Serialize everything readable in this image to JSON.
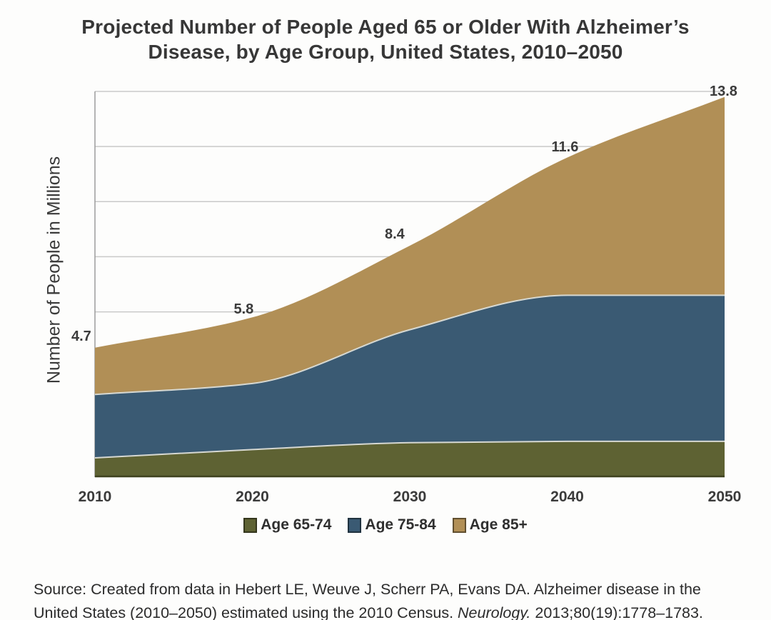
{
  "title": {
    "line1": "Projected Number of People Aged 65 or Older With Alzheimer’s",
    "line2": "Disease, by Age Group, United States, 2010–2050"
  },
  "y_axis_label": "Number of People in Millions",
  "colors": {
    "age_65_74": "#5e6233",
    "age_75_84": "#3a5a73",
    "age_85_plus": "#b18f56",
    "gridline": "#c9c9c9",
    "axis_line": "#9b9b9b",
    "baseline_edge": "#3f431f",
    "layer_edge_highlight": "#d6d8d2",
    "label_text": "#3b3b3b"
  },
  "chart_data": {
    "type": "area",
    "stacked": true,
    "title": "Projected Number of People Aged 65 or Older With Alzheimer's Disease, by Age Group, United States, 2010-2050",
    "categories": [
      2010,
      2020,
      2030,
      2040,
      2050
    ],
    "series": [
      {
        "name": "Age 65-74",
        "color": "#5e6233",
        "values": [
          0.7,
          1.0,
          1.25,
          1.3,
          1.3
        ]
      },
      {
        "name": "Age 75-84",
        "color": "#3a5a73",
        "values": [
          2.3,
          2.4,
          4.1,
          5.3,
          5.3
        ]
      },
      {
        "name": "Age 85+",
        "color": "#b18f56",
        "values": [
          1.7,
          2.4,
          3.05,
          5.0,
          7.2
        ]
      }
    ],
    "totals": [
      4.7,
      5.8,
      8.4,
      11.6,
      13.8
    ],
    "total_labels": [
      "4.7",
      "5.8",
      "8.4",
      "11.6",
      "13.8"
    ],
    "xlabel": "",
    "ylabel": "Number of People in Millions",
    "ylim": [
      0,
      14
    ],
    "grid_values": [
      2,
      4,
      6,
      8,
      10,
      12,
      14
    ],
    "grid_on": true,
    "legend_position": "bottom"
  },
  "source": {
    "line1": "Source: Created from data in Hebert LE, Weuve J, Scherr PA, Evans DA. Alzheimer disease in the",
    "line2_pre": "United States (2010–2050) estimated using the 2010 Census. ",
    "line2_italic": "Neurology.",
    "line2_post": " 2013;80(19):1778–1783."
  }
}
